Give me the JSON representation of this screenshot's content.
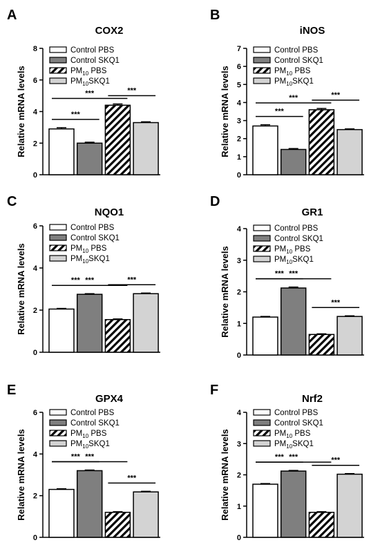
{
  "legend": {
    "entries": [
      {
        "label": "Control PBS",
        "sub": "",
        "suffix": "",
        "fill": "#ffffff",
        "pattern": "none"
      },
      {
        "label": "Control SKQ1",
        "sub": "",
        "suffix": "",
        "fill": "#7f7f7f",
        "pattern": "none"
      },
      {
        "label": "PM",
        "sub": "10",
        "suffix": " PBS",
        "fill": "#ffffff",
        "pattern": "stripes"
      },
      {
        "label": "PM",
        "sub": "10",
        "suffix": "SKQ1",
        "fill": "#d3d3d3",
        "pattern": "none"
      }
    ]
  },
  "colors": {
    "control_pbs": "#ffffff",
    "control_skq1": "#7f7f7f",
    "pm10_pbs_stripe": "#000000",
    "pm10_skq1": "#d3d3d3",
    "axis": "#000000"
  },
  "chart_data": [
    {
      "panel": "A",
      "type": "bar",
      "title": "COX2",
      "ylabel": "Relative mRNA levels",
      "ylim": [
        0,
        8
      ],
      "yticks": [
        0,
        2,
        4,
        6,
        8
      ],
      "categories": [
        "Control PBS",
        "Control SKQ1",
        "PM10 PBS",
        "PM10SKQ1"
      ],
      "values": [
        2.9,
        2.0,
        4.4,
        3.3
      ],
      "errors": [
        0.08,
        0.06,
        0.08,
        0.05
      ],
      "significance": [
        {
          "from": 0,
          "to": 1,
          "label": "***"
        },
        {
          "from": 0,
          "to": 2,
          "label": "***"
        },
        {
          "from": 2,
          "to": 3,
          "label": "***"
        }
      ]
    },
    {
      "panel": "B",
      "type": "bar",
      "title": "iNOS",
      "ylabel": "Relative mRNA levels",
      "ylim": [
        0,
        7
      ],
      "yticks": [
        0,
        1,
        2,
        3,
        4,
        5,
        6,
        7
      ],
      "categories": [
        "Control PBS",
        "Control SKQ1",
        "PM10 PBS",
        "PM10SKQ1"
      ],
      "values": [
        2.7,
        1.4,
        3.6,
        2.5
      ],
      "errors": [
        0.07,
        0.05,
        0.07,
        0.04
      ],
      "significance": [
        {
          "from": 0,
          "to": 1,
          "label": "***"
        },
        {
          "from": 0,
          "to": 2,
          "label": "***"
        },
        {
          "from": 2,
          "to": 3,
          "label": "***"
        }
      ]
    },
    {
      "panel": "C",
      "type": "bar",
      "title": "NQO1",
      "ylabel": "Relative mRNA levels",
      "ylim": [
        0,
        6
      ],
      "yticks": [
        0,
        2,
        4,
        6
      ],
      "categories": [
        "Control PBS",
        "Control SKQ1",
        "PM10 PBS",
        "PM10SKQ1"
      ],
      "values": [
        2.05,
        2.75,
        1.55,
        2.78
      ],
      "errors": [
        0.03,
        0.03,
        0.03,
        0.03
      ],
      "significance": [
        {
          "from": 0,
          "to": 1,
          "label": "***"
        },
        {
          "from": 0,
          "to": 2,
          "label": "***"
        },
        {
          "from": 2,
          "to": 3,
          "label": "***"
        }
      ]
    },
    {
      "panel": "D",
      "type": "bar",
      "title": "GR1",
      "ylabel": "Relative mRNA levels",
      "ylim": [
        0,
        4
      ],
      "yticks": [
        0,
        1,
        2,
        3,
        4
      ],
      "categories": [
        "Control PBS",
        "Control SKQ1",
        "PM10 PBS",
        "PM10SKQ1"
      ],
      "values": [
        1.2,
        2.12,
        0.65,
        1.22
      ],
      "errors": [
        0.02,
        0.03,
        0.02,
        0.02
      ],
      "significance": [
        {
          "from": 0,
          "to": 1,
          "label": "***"
        },
        {
          "from": 0,
          "to": 2,
          "label": "***"
        },
        {
          "from": 2,
          "to": 3,
          "label": "***"
        }
      ]
    },
    {
      "panel": "E",
      "type": "bar",
      "title": "GPX4",
      "ylabel": "Relative mRNA levels",
      "ylim": [
        0,
        6
      ],
      "yticks": [
        0,
        2,
        4,
        6
      ],
      "categories": [
        "Control PBS",
        "Control SKQ1",
        "PM10 PBS",
        "PM10SKQ1"
      ],
      "values": [
        2.3,
        3.2,
        1.2,
        2.18
      ],
      "errors": [
        0.03,
        0.03,
        0.03,
        0.03
      ],
      "significance": [
        {
          "from": 0,
          "to": 1,
          "label": "***"
        },
        {
          "from": 0,
          "to": 2,
          "label": "***"
        },
        {
          "from": 2,
          "to": 3,
          "label": "***"
        }
      ]
    },
    {
      "panel": "F",
      "type": "bar",
      "title": "Nrf2",
      "ylabel": "Relative mRNA levels",
      "ylim": [
        0,
        4
      ],
      "yticks": [
        0,
        1,
        2,
        3,
        4
      ],
      "categories": [
        "Control PBS",
        "Control SKQ1",
        "PM10 PBS",
        "PM10SKQ1"
      ],
      "values": [
        1.7,
        2.12,
        0.8,
        2.02
      ],
      "errors": [
        0.02,
        0.02,
        0.02,
        0.02
      ],
      "significance": [
        {
          "from": 0,
          "to": 1,
          "label": "***"
        },
        {
          "from": 0,
          "to": 2,
          "label": "***"
        },
        {
          "from": 2,
          "to": 3,
          "label": "***"
        }
      ]
    }
  ]
}
